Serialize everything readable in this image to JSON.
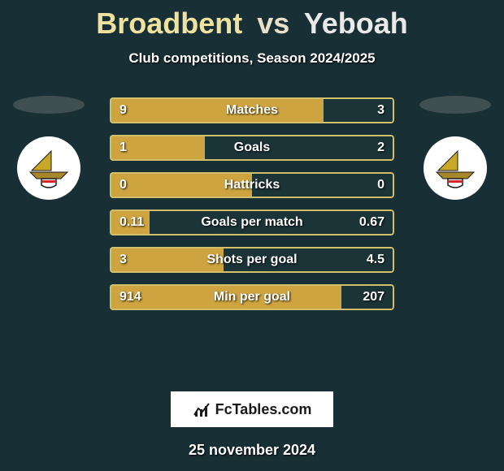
{
  "title": {
    "player1": "Broadbent",
    "vs": "vs",
    "player2": "Yeboah",
    "p1_color": "#efe19e",
    "vs_color": "#e9e0c8",
    "p2_color": "#e9e9e9",
    "fontsize": 36
  },
  "subtitle": "Club competitions, Season 2024/2025",
  "background_color": "#183035",
  "avatars": {
    "shadow_color": "#3f4f52",
    "crest_bg": "#ffffff",
    "crest_colors": {
      "sail": "#c9a827",
      "boat": "#a8862a",
      "shield": "#ffffff",
      "border": "#1a1a1a",
      "stripe": "#d02828"
    }
  },
  "bars": {
    "border_color": "#d3bf6a",
    "p1_fill": "#cda43f",
    "p2_fill": "#1b3438",
    "text_color": "#ffffff",
    "label_fontsize": 16,
    "rows": [
      {
        "label": "Matches",
        "v1": "9",
        "v2": "3",
        "f1": 0.75,
        "f2": 0.25
      },
      {
        "label": "Goals",
        "v1": "1",
        "v2": "2",
        "f1": 0.333,
        "f2": 0.667
      },
      {
        "label": "Hattricks",
        "v1": "0",
        "v2": "0",
        "f1": 0.5,
        "f2": 0.5
      },
      {
        "label": "Goals per match",
        "v1": "0.11",
        "v2": "0.67",
        "f1": 0.141,
        "f2": 0.859
      },
      {
        "label": "Shots per goal",
        "v1": "3",
        "v2": "4.5",
        "f1": 0.4,
        "f2": 0.6
      },
      {
        "label": "Min per goal",
        "v1": "914",
        "v2": "207",
        "f1": 0.815,
        "f2": 0.185
      }
    ]
  },
  "brand": {
    "text": "FcTables.com",
    "bg": "#ffffff",
    "text_color": "#1a1a1a",
    "icon_color": "#1a1a1a"
  },
  "date": "25 november 2024"
}
